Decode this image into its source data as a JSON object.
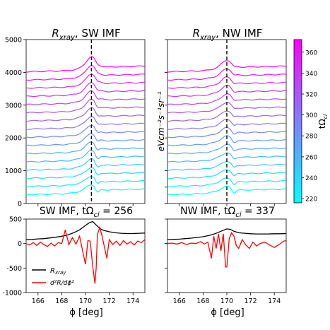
{
  "colorbar": {
    "label": "tΩ",
    "label_sub": "ci",
    "ticks": [
      220,
      240,
      260,
      280,
      300,
      320,
      340,
      360
    ],
    "range": [
      216,
      372
    ],
    "color_low": "#00ffff",
    "color_high": "#ff00ff"
  },
  "chart_data": [
    {
      "id": "top-left",
      "type": "line",
      "title": "R",
      "title_sub": "xray",
      "title_rest": ", SW IMF",
      "ylabel": "",
      "ylim": [
        0,
        5000
      ],
      "yticks": [
        0,
        1000,
        2000,
        3000,
        4000,
        5000
      ],
      "xlim": [
        165,
        175
      ],
      "xticks": [],
      "vline_x": 170.5,
      "series_count": 16,
      "t_range": [
        220,
        370
      ],
      "base_offsets": [
        270,
        540,
        790,
        1040,
        1280,
        1530,
        1790,
        2020,
        2290,
        2540,
        2790,
        3050,
        3300,
        3550,
        3780,
        3850
      ],
      "peak_x": 170.5,
      "peak_height": 320,
      "dip_x": 171.0,
      "dip_depth": 150,
      "post_level": 130,
      "stack_spacing": 250
    },
    {
      "id": "top-right",
      "type": "line",
      "title": "R",
      "title_sub": "xray",
      "title_rest": ", NW IMF",
      "ylabel": "eVcm⁻²s⁻¹sr⁻¹",
      "ylim": [
        0,
        5000
      ],
      "yticks": [],
      "xlim": [
        165,
        175
      ],
      "xticks": [],
      "vline_x": 170.0,
      "series_count": 16,
      "t_range": [
        220,
        370
      ],
      "base_offsets": [
        270,
        540,
        790,
        1040,
        1280,
        1530,
        1790,
        2020,
        2290,
        2540,
        2790,
        3050,
        3300,
        3550,
        3780,
        3850
      ],
      "peak_x": 170.0,
      "peak_height": 220,
      "dip_x": 170.6,
      "dip_depth": 120,
      "post_level": 120,
      "stack_spacing": 250
    },
    {
      "id": "bottom-left",
      "type": "line",
      "title": "SW IMF, tΩ",
      "title_sub": "ci",
      "title_rest": " = 256",
      "xlabel": "ϕ [deg]",
      "ylim": [
        -1000,
        500
      ],
      "yticks": [
        -1000,
        -500,
        0,
        500
      ],
      "xlim": [
        165,
        175
      ],
      "xticks": [
        166,
        168,
        170,
        172,
        174
      ],
      "legend": [
        "R",
        "d²R/dϕ²"
      ],
      "legend_position": "lower-left",
      "series": [
        {
          "name": "R_xray",
          "color": "#000000",
          "x": [
            165,
            165.5,
            166,
            166.5,
            167,
            167.5,
            168,
            168.5,
            169,
            169.5,
            170,
            170.3,
            170.6,
            170.9,
            171.2,
            171.5,
            172,
            172.5,
            173,
            173.5,
            174,
            174.5,
            175
          ],
          "y": [
            80,
            85,
            95,
            100,
            115,
            130,
            150,
            175,
            220,
            280,
            370,
            420,
            450,
            380,
            310,
            270,
            240,
            220,
            210,
            205,
            205,
            210,
            215
          ]
        },
        {
          "name": "d2R",
          "color": "#ff0000",
          "x": [
            165,
            165.3,
            165.6,
            165.9,
            166.2,
            166.5,
            166.8,
            167.1,
            167.4,
            167.7,
            168.0,
            168.3,
            168.6,
            168.9,
            169.2,
            169.5,
            169.8,
            170.0,
            170.2,
            170.4,
            170.6,
            170.8,
            170.9,
            171.0,
            171.2,
            171.4,
            171.6,
            171.8,
            172.0,
            172.3,
            172.6,
            172.9,
            173.2,
            173.5,
            173.8,
            174.1,
            174.4,
            174.7,
            175
          ],
          "y": [
            0,
            -30,
            20,
            -40,
            30,
            -20,
            -60,
            10,
            -50,
            20,
            0,
            280,
            -20,
            120,
            -10,
            150,
            -200,
            -420,
            60,
            50,
            -450,
            -820,
            -500,
            180,
            330,
            150,
            -80,
            -300,
            80,
            -20,
            50,
            -40,
            60,
            -10,
            40,
            -30,
            50,
            20,
            80
          ]
        }
      ]
    },
    {
      "id": "bottom-right",
      "type": "line",
      "title": "NW IMF, tΩ",
      "title_sub": "ci",
      "title_rest": " = 337",
      "xlabel": "ϕ [deg]",
      "ylim": [
        -1000,
        500
      ],
      "yticks": [],
      "xlim": [
        165,
        175
      ],
      "xticks": [
        166,
        168,
        170,
        172,
        174
      ],
      "series": [
        {
          "name": "R_xray",
          "color": "#000000",
          "x": [
            165,
            165.5,
            166,
            166.5,
            167,
            167.5,
            168,
            168.5,
            169,
            169.5,
            169.8,
            170.0,
            170.3,
            170.6,
            171.0,
            171.5,
            172,
            172.5,
            173,
            173.5,
            174,
            174.5,
            175
          ],
          "y": [
            80,
            85,
            90,
            100,
            110,
            125,
            140,
            165,
            200,
            250,
            280,
            300,
            290,
            250,
            220,
            210,
            200,
            195,
            195,
            195,
            200,
            200,
            205
          ]
        },
        {
          "name": "d2R",
          "color": "#ff0000",
          "x": [
            165,
            165.4,
            165.8,
            166.2,
            166.6,
            167.0,
            167.4,
            167.8,
            168.1,
            168.4,
            168.7,
            168.9,
            169.1,
            169.3,
            169.5,
            169.7,
            169.9,
            170.0,
            170.2,
            170.4,
            170.6,
            170.8,
            171.0,
            171.3,
            171.6,
            171.9,
            172.2,
            172.5,
            172.8,
            173.2,
            173.6,
            174.0,
            174.4,
            174.8,
            175
          ],
          "y": [
            0,
            10,
            -10,
            20,
            -20,
            10,
            0,
            40,
            -10,
            30,
            -300,
            150,
            -100,
            200,
            -150,
            200,
            -480,
            -480,
            100,
            220,
            150,
            -40,
            -100,
            80,
            -30,
            -100,
            30,
            -50,
            0,
            30,
            -30,
            -80,
            -20,
            50,
            60
          ]
        }
      ]
    }
  ]
}
